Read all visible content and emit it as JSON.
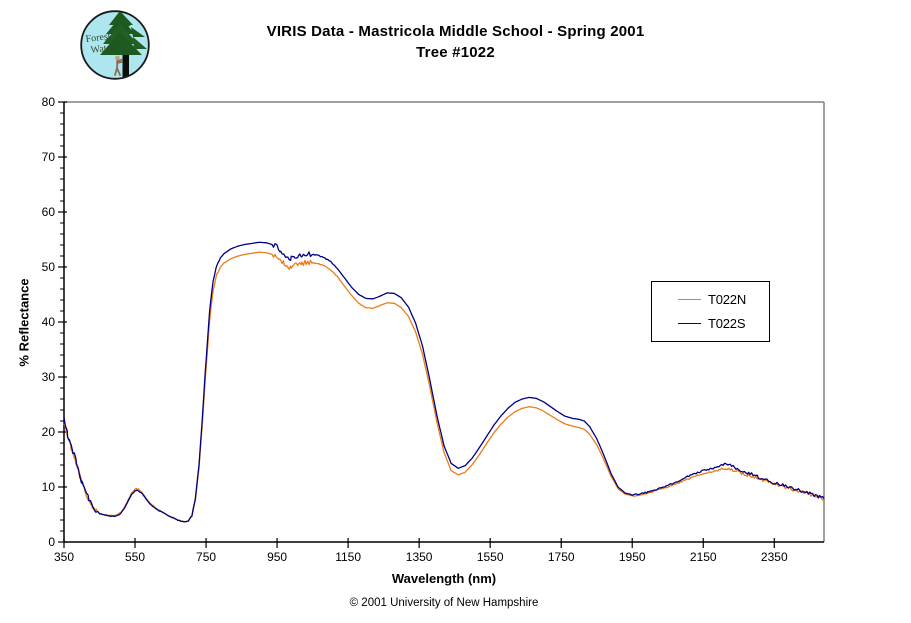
{
  "header": {
    "title_line1": "VIRIS Data - Mastricola Middle School - Spring 2001",
    "title_line2": "Tree #1022"
  },
  "logo": {
    "line1": "Forest",
    "line2": "Watch",
    "bg_color": "#ade6ee",
    "tree_color": "#1d5a1f",
    "trunk_color": "#0d0d0d",
    "text_color": "#2f4a2f"
  },
  "footer": {
    "copyright": "© 2001 University of New Hampshire"
  },
  "chart_data": {
    "type": "line",
    "title": "VIRIS Data - Mastricola Middle School - Spring 2001 / Tree #1022",
    "xlabel": "Wavelength (nm)",
    "ylabel": "% Reflectance",
    "xlim": [
      350,
      2490
    ],
    "ylim": [
      0,
      80
    ],
    "x_ticks": [
      350,
      550,
      750,
      950,
      1150,
      1350,
      1550,
      1750,
      1950,
      2150,
      2350
    ],
    "y_ticks": [
      0,
      10,
      20,
      30,
      40,
      50,
      60,
      70,
      80
    ],
    "y_minor_step": 2,
    "grid": false,
    "legend_position": "right-middle",
    "axis_color": "#000000",
    "border_color": "#808080",
    "x": [
      350,
      355,
      360,
      365,
      370,
      375,
      380,
      385,
      390,
      395,
      400,
      410,
      420,
      430,
      440,
      450,
      460,
      470,
      480,
      490,
      500,
      510,
      520,
      530,
      540,
      550,
      555,
      560,
      570,
      580,
      590,
      600,
      610,
      620,
      630,
      640,
      650,
      660,
      670,
      680,
      690,
      700,
      710,
      720,
      730,
      740,
      750,
      760,
      770,
      780,
      790,
      800,
      820,
      840,
      860,
      880,
      900,
      920,
      940,
      950,
      960,
      970,
      980,
      990,
      1000,
      1010,
      1020,
      1040,
      1060,
      1080,
      1100,
      1120,
      1140,
      1160,
      1180,
      1200,
      1220,
      1240,
      1260,
      1280,
      1300,
      1320,
      1340,
      1360,
      1380,
      1400,
      1420,
      1440,
      1460,
      1480,
      1500,
      1520,
      1540,
      1560,
      1580,
      1600,
      1620,
      1640,
      1660,
      1680,
      1700,
      1720,
      1740,
      1760,
      1780,
      1800,
      1815,
      1830,
      1850,
      1870,
      1890,
      1910,
      1930,
      1950,
      1970,
      1990,
      2010,
      2030,
      2050,
      2070,
      2090,
      2110,
      2130,
      2150,
      2170,
      2190,
      2210,
      2230,
      2250,
      2270,
      2290,
      2310,
      2330,
      2350,
      2370,
      2390,
      2410,
      2430,
      2450,
      2470,
      2490
    ],
    "series": [
      {
        "name": "T022N",
        "color": "#ED7B17",
        "values": [
          22.0,
          20.6,
          19.2,
          18.2,
          17.2,
          16.2,
          15.3,
          14.1,
          13.0,
          11.9,
          10.9,
          9.2,
          7.7,
          6.5,
          5.7,
          5.2,
          5.0,
          4.9,
          4.8,
          4.8,
          4.9,
          5.4,
          6.3,
          7.6,
          8.9,
          9.6,
          9.7,
          9.6,
          9.0,
          8.1,
          7.2,
          6.6,
          6.1,
          5.7,
          5.3,
          4.9,
          4.6,
          4.3,
          4.0,
          3.8,
          3.7,
          3.8,
          4.7,
          7.7,
          13.4,
          22.0,
          31.5,
          40.3,
          45.8,
          48.6,
          49.9,
          50.7,
          51.5,
          52.0,
          52.3,
          52.5,
          52.7,
          52.6,
          52.2,
          51.9,
          51.3,
          50.6,
          49.9,
          50.1,
          50.4,
          50.5,
          50.7,
          50.8,
          50.7,
          50.3,
          49.5,
          48.2,
          46.5,
          44.8,
          43.4,
          42.6,
          42.5,
          43.0,
          43.5,
          43.4,
          42.6,
          41.0,
          38.2,
          34.0,
          28.2,
          21.8,
          16.3,
          13.0,
          12.2,
          12.7,
          14.1,
          15.9,
          17.9,
          19.8,
          21.4,
          22.7,
          23.7,
          24.3,
          24.6,
          24.4,
          23.8,
          23.0,
          22.2,
          21.5,
          21.1,
          20.8,
          20.5,
          19.6,
          17.7,
          15.0,
          12.0,
          9.7,
          8.7,
          8.4,
          8.5,
          8.8,
          9.2,
          9.6,
          10.0,
          10.5,
          11.0,
          11.5,
          12.0,
          12.4,
          12.7,
          13.0,
          13.4,
          13.1,
          12.7,
          12.3,
          11.9,
          11.4,
          11.0,
          10.6,
          10.2,
          9.8,
          9.4,
          9.1,
          8.7,
          8.3,
          7.8
        ]
      },
      {
        "name": "T022S",
        "color": "#000080",
        "values": [
          22.5,
          21.0,
          19.5,
          18.5,
          17.5,
          16.5,
          15.5,
          14.3,
          13.2,
          12.0,
          11.0,
          9.3,
          7.8,
          6.5,
          5.7,
          5.2,
          5.0,
          4.8,
          4.7,
          4.7,
          4.8,
          5.2,
          6.1,
          7.3,
          8.6,
          9.3,
          9.4,
          9.3,
          8.8,
          7.9,
          7.1,
          6.5,
          6.0,
          5.6,
          5.3,
          4.9,
          4.6,
          4.3,
          4.0,
          3.8,
          3.7,
          3.8,
          4.8,
          8.0,
          14.0,
          23.0,
          33.0,
          42.0,
          47.5,
          50.3,
          51.6,
          52.4,
          53.3,
          53.8,
          54.1,
          54.3,
          54.5,
          54.4,
          54.0,
          53.7,
          53.0,
          52.2,
          51.4,
          51.6,
          51.9,
          52.1,
          52.2,
          52.3,
          52.2,
          51.8,
          51.0,
          49.7,
          48.0,
          46.3,
          45.0,
          44.3,
          44.2,
          44.7,
          45.3,
          45.2,
          44.4,
          42.7,
          39.8,
          35.5,
          29.5,
          23.0,
          17.5,
          14.3,
          13.4,
          13.9,
          15.3,
          17.2,
          19.2,
          21.2,
          22.9,
          24.3,
          25.4,
          26.0,
          26.3,
          26.1,
          25.5,
          24.6,
          23.7,
          22.9,
          22.5,
          22.3,
          22.0,
          21.0,
          18.8,
          15.8,
          12.5,
          10.0,
          8.9,
          8.6,
          8.7,
          9.0,
          9.4,
          9.8,
          10.3,
          10.8,
          11.4,
          12.0,
          12.5,
          13.0,
          13.3,
          13.6,
          14.3,
          13.8,
          13.2,
          12.7,
          12.2,
          11.7,
          11.2,
          10.8,
          10.4,
          10.0,
          9.6,
          9.2,
          8.8,
          8.4,
          7.9
        ]
      }
    ],
    "noise_regions": [
      {
        "from": 350,
        "to": 440,
        "amp": 0.5
      },
      {
        "from": 440,
        "to": 700,
        "amp": 0.07
      },
      {
        "from": 700,
        "to": 790,
        "amp": 0.12
      },
      {
        "from": 940,
        "to": 1045,
        "amp": 0.45
      },
      {
        "from": 1045,
        "to": 1120,
        "amp": 0.08
      },
      {
        "from": 1950,
        "to": 2200,
        "amp": 0.12
      },
      {
        "from": 2200,
        "to": 2490,
        "amp": 0.3
      }
    ]
  }
}
